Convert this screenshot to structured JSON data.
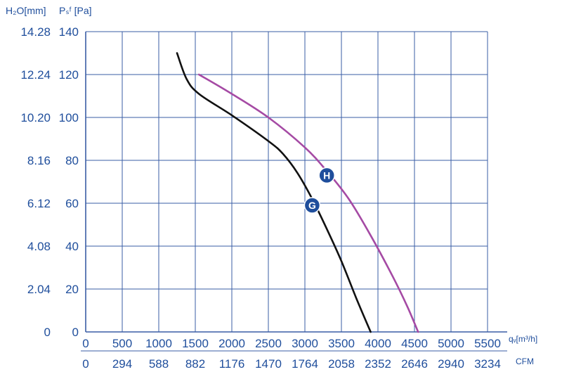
{
  "chart_data": {
    "type": "line",
    "title": "",
    "left_axis_label_h2o": "H₂O[mm]",
    "left_axis_label_psf": "Pₛᶠ [Pa]",
    "x_unit_label": "qᵥ[m³/h]",
    "x_cfm_label": "CFM",
    "xlim": [
      0,
      5500
    ],
    "ylim": [
      0,
      140
    ],
    "grid": true,
    "x_ticks": [
      "0",
      "500",
      "1000",
      "1500",
      "2000",
      "2500",
      "3000",
      "3500",
      "4000",
      "4500",
      "5000",
      "5500"
    ],
    "x_cfm_ticks": [
      "0",
      "294",
      "588",
      "882",
      "1176",
      "1470",
      "1764",
      "2058",
      "2352",
      "2646",
      "2940",
      "3234"
    ],
    "y_ticks_pa": [
      "0",
      "20",
      "40",
      "60",
      "80",
      "100",
      "120",
      "140"
    ],
    "y_ticks_h2o": [
      "0",
      "2.04",
      "4.08",
      "6.12",
      "8.16",
      "10.20",
      "12.24",
      "14.28"
    ],
    "series": [
      {
        "name": "G",
        "color": "#111111",
        "x": [
          1250,
          1380,
          1550,
          2000,
          2500,
          2700,
          2900,
          3100,
          3300,
          3500,
          3700,
          3900
        ],
        "y": [
          130,
          118,
          111,
          101,
          89,
          83,
          74,
          62,
          48,
          33,
          16,
          0
        ]
      },
      {
        "name": "H",
        "color": "#a54aa4",
        "x": [
          1550,
          2000,
          2500,
          3000,
          3300,
          3600,
          3900,
          4200,
          4400,
          4550
        ],
        "y": [
          120,
          111,
          100,
          86,
          75,
          62,
          45,
          26,
          12,
          0
        ]
      }
    ],
    "markers": [
      {
        "label": "G",
        "x": 3100,
        "y": 59,
        "color": "#1f4e9c"
      },
      {
        "label": "H",
        "x": 3300,
        "y": 73,
        "color": "#1f4e9c"
      }
    ]
  }
}
